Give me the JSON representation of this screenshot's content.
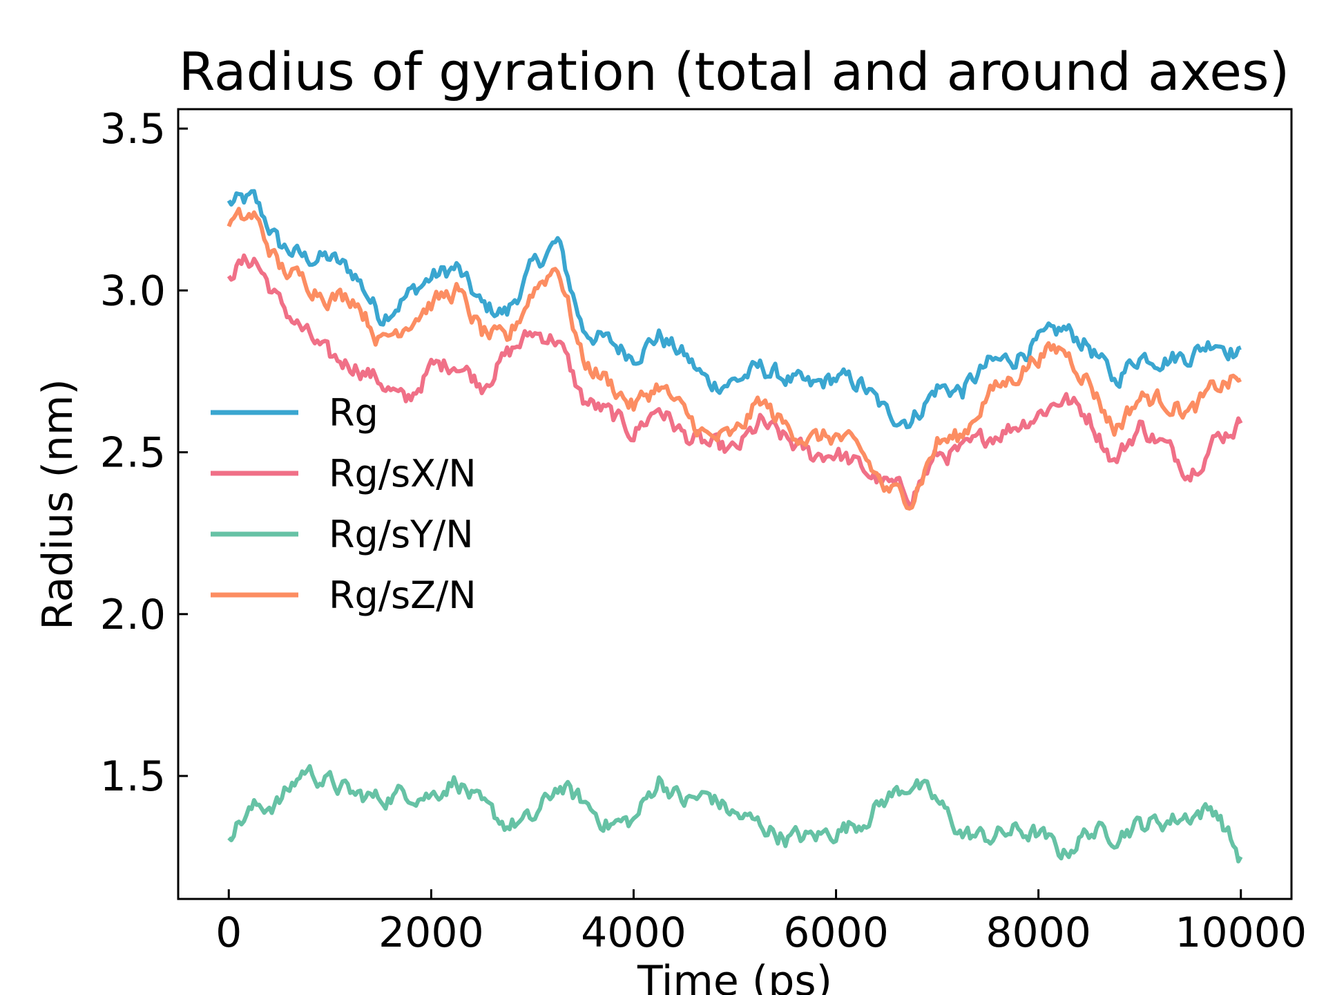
{
  "chart_data": {
    "type": "line",
    "title": "Radius of gyration (total and around axes)",
    "xlabel": "Time (ps)",
    "ylabel": "Radius (nm)",
    "xlim": [
      -500,
      10500
    ],
    "ylim": [
      1.12,
      3.56
    ],
    "xticks": [
      0,
      2000,
      4000,
      6000,
      8000,
      10000
    ],
    "xtick_labels": [
      "0",
      "2000",
      "4000",
      "6000",
      "8000",
      "10000"
    ],
    "yticks": [
      1.5,
      2.0,
      2.5,
      3.0,
      3.5
    ],
    "ytick_labels": [
      "1.5",
      "2.0",
      "2.5",
      "3.0",
      "3.5"
    ],
    "grid": false,
    "legend_position": "center-left",
    "x": [
      0,
      250,
      500,
      750,
      1000,
      1250,
      1500,
      1750,
      2000,
      2250,
      2500,
      2750,
      3000,
      3250,
      3500,
      3750,
      4000,
      4250,
      4500,
      4750,
      5000,
      5250,
      5500,
      5750,
      6000,
      6250,
      6500,
      6750,
      7000,
      7250,
      7500,
      7750,
      8000,
      8250,
      8500,
      8750,
      9000,
      9250,
      9500,
      9750,
      10000
    ],
    "series": [
      {
        "name": "Rg",
        "color": "#3aa6d0",
        "values": [
          3.27,
          3.28,
          3.14,
          3.1,
          3.1,
          3.05,
          2.92,
          2.98,
          3.04,
          3.07,
          2.95,
          2.93,
          3.07,
          3.15,
          2.88,
          2.84,
          2.8,
          2.86,
          2.8,
          2.71,
          2.72,
          2.76,
          2.73,
          2.7,
          2.73,
          2.71,
          2.62,
          2.6,
          2.7,
          2.69,
          2.77,
          2.79,
          2.84,
          2.88,
          2.83,
          2.72,
          2.8,
          2.79,
          2.8,
          2.85,
          2.8
        ]
      },
      {
        "name": "Rg/sX/N",
        "color": "#f07087",
        "values": [
          3.06,
          3.1,
          2.96,
          2.87,
          2.79,
          2.77,
          2.72,
          2.65,
          2.76,
          2.78,
          2.71,
          2.8,
          2.87,
          2.85,
          2.66,
          2.62,
          2.56,
          2.64,
          2.55,
          2.52,
          2.5,
          2.59,
          2.54,
          2.49,
          2.5,
          2.45,
          2.4,
          2.37,
          2.49,
          2.5,
          2.55,
          2.58,
          2.62,
          2.67,
          2.61,
          2.47,
          2.58,
          2.52,
          2.44,
          2.54,
          2.59
        ]
      },
      {
        "name": "Rg/sY/N",
        "color": "#66c2a5",
        "values": [
          1.33,
          1.4,
          1.42,
          1.52,
          1.48,
          1.44,
          1.43,
          1.45,
          1.44,
          1.49,
          1.4,
          1.35,
          1.36,
          1.47,
          1.42,
          1.35,
          1.36,
          1.49,
          1.42,
          1.44,
          1.38,
          1.35,
          1.31,
          1.31,
          1.33,
          1.36,
          1.43,
          1.48,
          1.42,
          1.32,
          1.31,
          1.33,
          1.32,
          1.26,
          1.33,
          1.32,
          1.35,
          1.36,
          1.38,
          1.4,
          1.24
        ]
      },
      {
        "name": "Rg/sZ/N",
        "color": "#fc8d62",
        "values": [
          3.21,
          3.23,
          3.07,
          3.03,
          2.98,
          2.98,
          2.84,
          2.9,
          2.96,
          3.0,
          2.87,
          2.84,
          3.0,
          3.08,
          2.78,
          2.72,
          2.64,
          2.71,
          2.62,
          2.54,
          2.55,
          2.66,
          2.58,
          2.54,
          2.55,
          2.5,
          2.38,
          2.36,
          2.53,
          2.55,
          2.68,
          2.73,
          2.8,
          2.82,
          2.72,
          2.57,
          2.67,
          2.66,
          2.62,
          2.7,
          2.73
        ]
      }
    ]
  }
}
